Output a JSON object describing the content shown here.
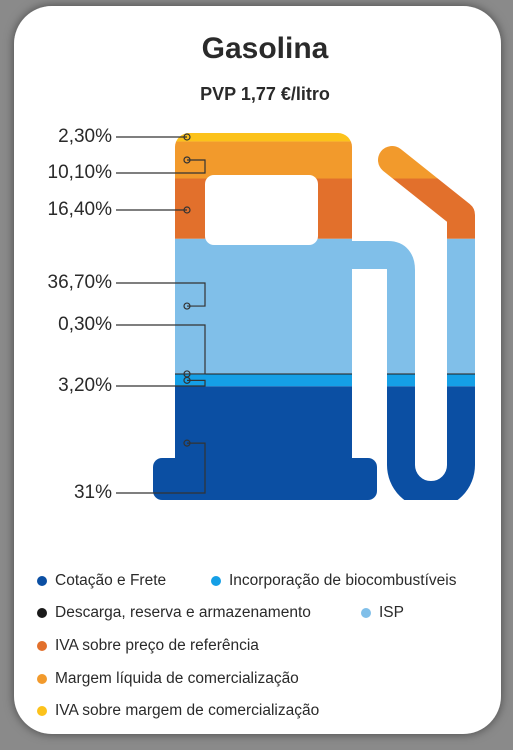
{
  "chart_data": {
    "type": "pump",
    "title": "Gasolina",
    "subtitle": "PVP 1,77 €/litro",
    "categories": [
      "Cotação e Frete",
      "Incorporação de biocombustíveis",
      "Descarga, reserva e armazenamento",
      "ISP",
      "IVA sobre preço de referência",
      "Margem líquida de comercialização",
      "IVA sobre margem de comercialização"
    ],
    "values": [
      31,
      3.2,
      0.3,
      36.7,
      16.4,
      10.1,
      2.3
    ],
    "value_labels": [
      "31%",
      "3,20%",
      "0,30%",
      "36,70%",
      "16,40%",
      "10,10%",
      "2,30%"
    ],
    "colors": [
      "#0b4fa3",
      "#159fe6",
      "#1a1a1a",
      "#80bfe9",
      "#e2702c",
      "#f29a2c",
      "#fcc21b"
    ]
  }
}
